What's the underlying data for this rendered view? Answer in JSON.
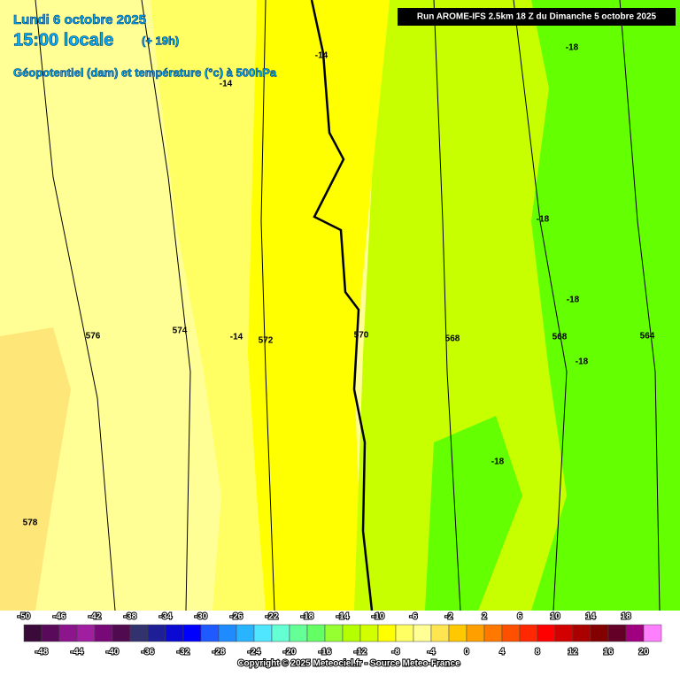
{
  "header": {
    "date": "Lundi 6 octobre 2025",
    "time": "15:00 locale",
    "lead": "(+ 19h)",
    "field": "Géopotentiel (dam) et température (°c) à 500hPa",
    "run": "Run AROME-IFS 2.5km 18 Z du Dimanche 5 octobre 2025"
  },
  "geopotential_labels": [
    576,
    574,
    572,
    570,
    568,
    568,
    564,
    578
  ],
  "temperature_labels": [
    -14,
    -14,
    -14,
    -18,
    -18,
    -18,
    -18,
    -18
  ],
  "colorbar": {
    "ticks": [
      -50,
      -48,
      -46,
      -44,
      -42,
      -40,
      -38,
      -36,
      -34,
      -32,
      -30,
      -28,
      -26,
      -24,
      -22,
      -20,
      -18,
      -16,
      -14,
      -12,
      -10,
      -8,
      -6,
      -4,
      -2,
      0,
      2,
      4,
      6,
      8,
      10,
      12,
      14,
      16,
      18,
      20
    ],
    "colors": [
      "#3a0a3a",
      "#5a0a5a",
      "#8c148c",
      "#a01ea0",
      "#780a78",
      "#500a50",
      "#32326e",
      "#1e1e96",
      "#0a0ad2",
      "#0000ff",
      "#1e5aff",
      "#1e8cff",
      "#28b4ff",
      "#50e6ff",
      "#64ffd2",
      "#64ff96",
      "#64ff64",
      "#96ff32",
      "#b4ff00",
      "#d2ff00",
      "#ffff00",
      "#ffff64",
      "#ffff96",
      "#ffe650",
      "#ffc800",
      "#ffa000",
      "#ff7800",
      "#ff5000",
      "#ff2800",
      "#ff0000",
      "#d20000",
      "#aa0000",
      "#820000",
      "#640028",
      "#a00080",
      "#ff80ff"
    ]
  },
  "copyright": "Copyright © 2025 Meteociel.fr - Source Meteo-France"
}
